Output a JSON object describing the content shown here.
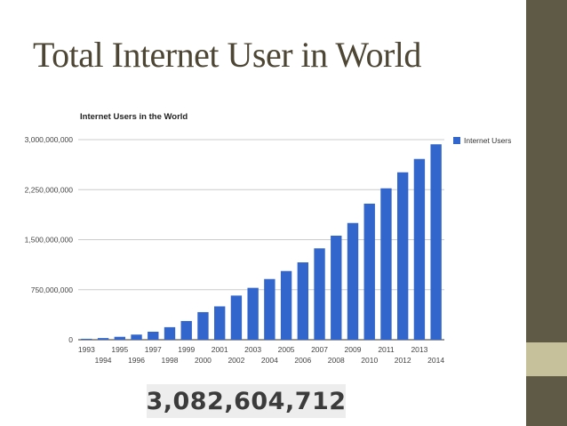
{
  "slide": {
    "title": "Total Internet User in World",
    "total": "3,082,604,712"
  },
  "chart_data": {
    "type": "bar",
    "title": "Internet Users in the World",
    "legend": {
      "entries": [
        "Internet Users"
      ],
      "placement": "right"
    },
    "grid": true,
    "ylim": [
      0,
      3000000000
    ],
    "y_ticks": [
      0,
      750000000,
      1500000000,
      2250000000,
      3000000000
    ],
    "y_tick_labels": [
      "0",
      "750,000,000",
      "1,500,000,000",
      "2,250,000,000",
      "3,000,000,000"
    ],
    "categories": [
      "1993",
      "1994",
      "1995",
      "1996",
      "1997",
      "1998",
      "1999",
      "2000",
      "2001",
      "2002",
      "2003",
      "2004",
      "2005",
      "2006",
      "2007",
      "2008",
      "2009",
      "2010",
      "2011",
      "2012",
      "2013",
      "2014"
    ],
    "series": [
      {
        "name": "Internet Users",
        "color": "#3366cc",
        "values": [
          14000000,
          25000000,
          44000000,
          77000000,
          120000000,
          188000000,
          281000000,
          414000000,
          500000000,
          662000000,
          778000000,
          910000000,
          1030000000,
          1160000000,
          1370000000,
          1560000000,
          1750000000,
          2040000000,
          2270000000,
          2510000000,
          2710000000,
          2930000000
        ]
      }
    ]
  }
}
